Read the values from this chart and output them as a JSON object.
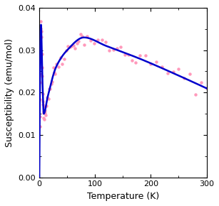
{
  "xlabel": "Temperature (K)",
  "ylabel": "Susceptibility (emu/mol)",
  "xlim": [
    0,
    300
  ],
  "ylim": [
    0.0,
    0.04
  ],
  "xticks": [
    0,
    100,
    200,
    300
  ],
  "yticks": [
    0.0,
    0.01,
    0.02,
    0.03,
    0.04
  ],
  "data_color": "#ff99bb",
  "fit_color": "#0000cc",
  "background_color": "#ffffff",
  "marker_size": 2.2,
  "fit_linewidth": 1.8,
  "data_linewidth": 0.0,
  "tick_labelsize": 8,
  "axis_labelsize": 9
}
